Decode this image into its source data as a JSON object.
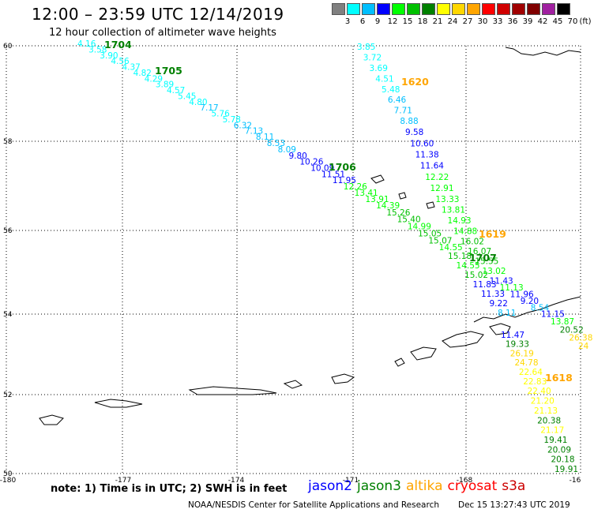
{
  "header": {
    "title": "12:00 – 23:59 UTC 12/14/2019",
    "subtitle": "12 hour collection of altimeter wave heights"
  },
  "scale": {
    "unit": "(ft)",
    "steps": [
      {
        "label": "3",
        "color": "#808080"
      },
      {
        "label": "6",
        "color": "#00ffff"
      },
      {
        "label": "9",
        "color": "#00bfff"
      },
      {
        "label": "12",
        "color": "#0000ff"
      },
      {
        "label": "15",
        "color": "#00ff00"
      },
      {
        "label": "18",
        "color": "#00c000"
      },
      {
        "label": "21",
        "color": "#008000"
      },
      {
        "label": "24",
        "color": "#ffff00"
      },
      {
        "label": "27",
        "color": "#ffd700"
      },
      {
        "label": "30",
        "color": "#ffa500"
      },
      {
        "label": "33",
        "color": "#ff0000"
      },
      {
        "label": "36",
        "color": "#d00000"
      },
      {
        "label": "39",
        "color": "#a00000"
      },
      {
        "label": "42",
        "color": "#800000"
      },
      {
        "label": "45",
        "color": "#a020a0"
      },
      {
        "label": "70",
        "color": "#000000"
      }
    ]
  },
  "axes": {
    "lat_labels": [
      "60",
      "58",
      "56",
      "54",
      "52",
      "50"
    ],
    "lon_labels": [
      "-180",
      "-177",
      "-174",
      "-171",
      "-168",
      "-16"
    ]
  },
  "satellites": [
    {
      "name": "jason2",
      "color": "#0000ff"
    },
    {
      "name": "jason3",
      "color": "#008000"
    },
    {
      "name": "altika",
      "color": "#ffa500"
    },
    {
      "name": "cryosat",
      "color": "#ff0000"
    },
    {
      "name": "s3a",
      "color": "#cc0000"
    }
  ],
  "footer": {
    "note": "note: 1) Time is in UTC; 2) SWH is in feet",
    "credit": "NOAA/NESDIS Center for Satellite Applications and Research",
    "timestamp": "Dec 15 13:27:43 UTC 2019"
  },
  "time_labels": [
    {
      "text": "1704",
      "color": "#008000"
    },
    {
      "text": "1705",
      "color": "#008000"
    },
    {
      "text": "1706",
      "color": "#008000"
    },
    {
      "text": "1707",
      "color": "#008000"
    },
    {
      "text": "1620",
      "color": "#ffa500"
    },
    {
      "text": "1619",
      "color": "#ffa500"
    },
    {
      "text": "1618",
      "color": "#ffa500"
    }
  ],
  "tracks": [
    {
      "name": "track-a",
      "points": [
        {
          "v": "4.16",
          "c": "#00ffff"
        },
        {
          "v": "3.58",
          "c": "#00ffff"
        },
        {
          "v": "3.90",
          "c": "#00ffff"
        },
        {
          "v": "4.56",
          "c": "#00ffff"
        },
        {
          "v": "4.37",
          "c": "#00ffff"
        },
        {
          "v": "4.82",
          "c": "#00ffff"
        },
        {
          "v": "4.29",
          "c": "#00ffff"
        },
        {
          "v": "3.89",
          "c": "#00ffff"
        },
        {
          "v": "4.57",
          "c": "#00ffff"
        },
        {
          "v": "5.45",
          "c": "#00ffff"
        },
        {
          "v": "4.80",
          "c": "#00ffff"
        },
        {
          "v": "7.17",
          "c": "#00bfff"
        },
        {
          "v": "5.76",
          "c": "#00ffff"
        },
        {
          "v": "5.78",
          "c": "#00ffff"
        },
        {
          "v": "6.32",
          "c": "#00bfff"
        },
        {
          "v": "7.13",
          "c": "#00bfff"
        },
        {
          "v": "8.11",
          "c": "#00bfff"
        },
        {
          "v": "8.53",
          "c": "#00bfff"
        },
        {
          "v": "8.09",
          "c": "#00bfff"
        },
        {
          "v": "9.80",
          "c": "#0000ff"
        },
        {
          "v": "10.26",
          "c": "#0000ff"
        },
        {
          "v": "10.09",
          "c": "#0000ff"
        },
        {
          "v": "11.51",
          "c": "#0000ff"
        },
        {
          "v": "11.95",
          "c": "#0000ff"
        },
        {
          "v": "12.26",
          "c": "#00ff00"
        },
        {
          "v": "13.41",
          "c": "#00ff00"
        },
        {
          "v": "13.91",
          "c": "#00ff00"
        },
        {
          "v": "14.39",
          "c": "#00ff00"
        },
        {
          "v": "15.26",
          "c": "#00c000"
        },
        {
          "v": "15.40",
          "c": "#00c000"
        },
        {
          "v": "14.99",
          "c": "#00ff00"
        },
        {
          "v": "15.05",
          "c": "#00c000"
        },
        {
          "v": "15.07",
          "c": "#00c000"
        },
        {
          "v": "14.55",
          "c": "#00ff00"
        },
        {
          "v": "15.18",
          "c": "#00c000"
        },
        {
          "v": "14.55",
          "c": "#00ff00"
        },
        {
          "v": "15.02",
          "c": "#00c000"
        },
        {
          "v": "11.83",
          "c": "#0000ff"
        },
        {
          "v": "11.33",
          "c": "#0000ff"
        },
        {
          "v": "9.22",
          "c": "#0000ff"
        },
        {
          "v": "8.11",
          "c": "#00bfff"
        }
      ]
    },
    {
      "name": "track-b",
      "points": [
        {
          "v": "3.85",
          "c": "#00ffff"
        },
        {
          "v": "3.72",
          "c": "#00ffff"
        },
        {
          "v": "3.69",
          "c": "#00ffff"
        },
        {
          "v": "4.51",
          "c": "#00ffff"
        },
        {
          "v": "5.48",
          "c": "#00ffff"
        },
        {
          "v": "6.46",
          "c": "#00bfff"
        },
        {
          "v": "7.71",
          "c": "#00bfff"
        },
        {
          "v": "8.88",
          "c": "#00bfff"
        },
        {
          "v": "9.58",
          "c": "#0000ff"
        },
        {
          "v": "10.60",
          "c": "#0000ff"
        },
        {
          "v": "11.38",
          "c": "#0000ff"
        },
        {
          "v": "11.64",
          "c": "#0000ff"
        },
        {
          "v": "12.22",
          "c": "#00ff00"
        },
        {
          "v": "12.91",
          "c": "#00ff00"
        },
        {
          "v": "13.33",
          "c": "#00ff00"
        },
        {
          "v": "13.81",
          "c": "#00ff00"
        },
        {
          "v": "14.93",
          "c": "#00ff00"
        },
        {
          "v": "14.88",
          "c": "#00ff00"
        },
        {
          "v": "16.02",
          "c": "#00c000"
        },
        {
          "v": "16.07",
          "c": "#00c000"
        },
        {
          "v": "15.55",
          "c": "#00c000"
        },
        {
          "v": "13.02",
          "c": "#00ff00"
        },
        {
          "v": "11.43",
          "c": "#0000ff"
        },
        {
          "v": "11.13",
          "c": "#00ff00"
        },
        {
          "v": "11.96",
          "c": "#0000ff"
        },
        {
          "v": "9.20",
          "c": "#0000ff"
        },
        {
          "v": "8.54",
          "c": "#00bfff"
        },
        {
          "v": "11.15",
          "c": "#0000ff"
        },
        {
          "v": "13.87",
          "c": "#00ff00"
        },
        {
          "v": "20.52",
          "c": "#008000"
        },
        {
          "v": "26.38",
          "c": "#ffd700"
        },
        {
          "v": "24",
          "c": "#ffd700"
        }
      ]
    },
    {
      "name": "track-c",
      "points": [
        {
          "v": "11.47",
          "c": "#0000ff"
        },
        {
          "v": "19.33",
          "c": "#008000"
        },
        {
          "v": "26.19",
          "c": "#ffd700"
        },
        {
          "v": "24.78",
          "c": "#ffd700"
        },
        {
          "v": "22.64",
          "c": "#ffff00"
        },
        {
          "v": "22.83",
          "c": "#ffff00"
        },
        {
          "v": "22.40",
          "c": "#ffff00"
        },
        {
          "v": "21.20",
          "c": "#ffff00"
        },
        {
          "v": "21.13",
          "c": "#ffff00"
        },
        {
          "v": "20.38",
          "c": "#008000"
        },
        {
          "v": "21.17",
          "c": "#ffff00"
        },
        {
          "v": "19.41",
          "c": "#008000"
        },
        {
          "v": "20.09",
          "c": "#008000"
        },
        {
          "v": "20.18",
          "c": "#008000"
        },
        {
          "v": "19.91",
          "c": "#008000"
        }
      ]
    }
  ]
}
